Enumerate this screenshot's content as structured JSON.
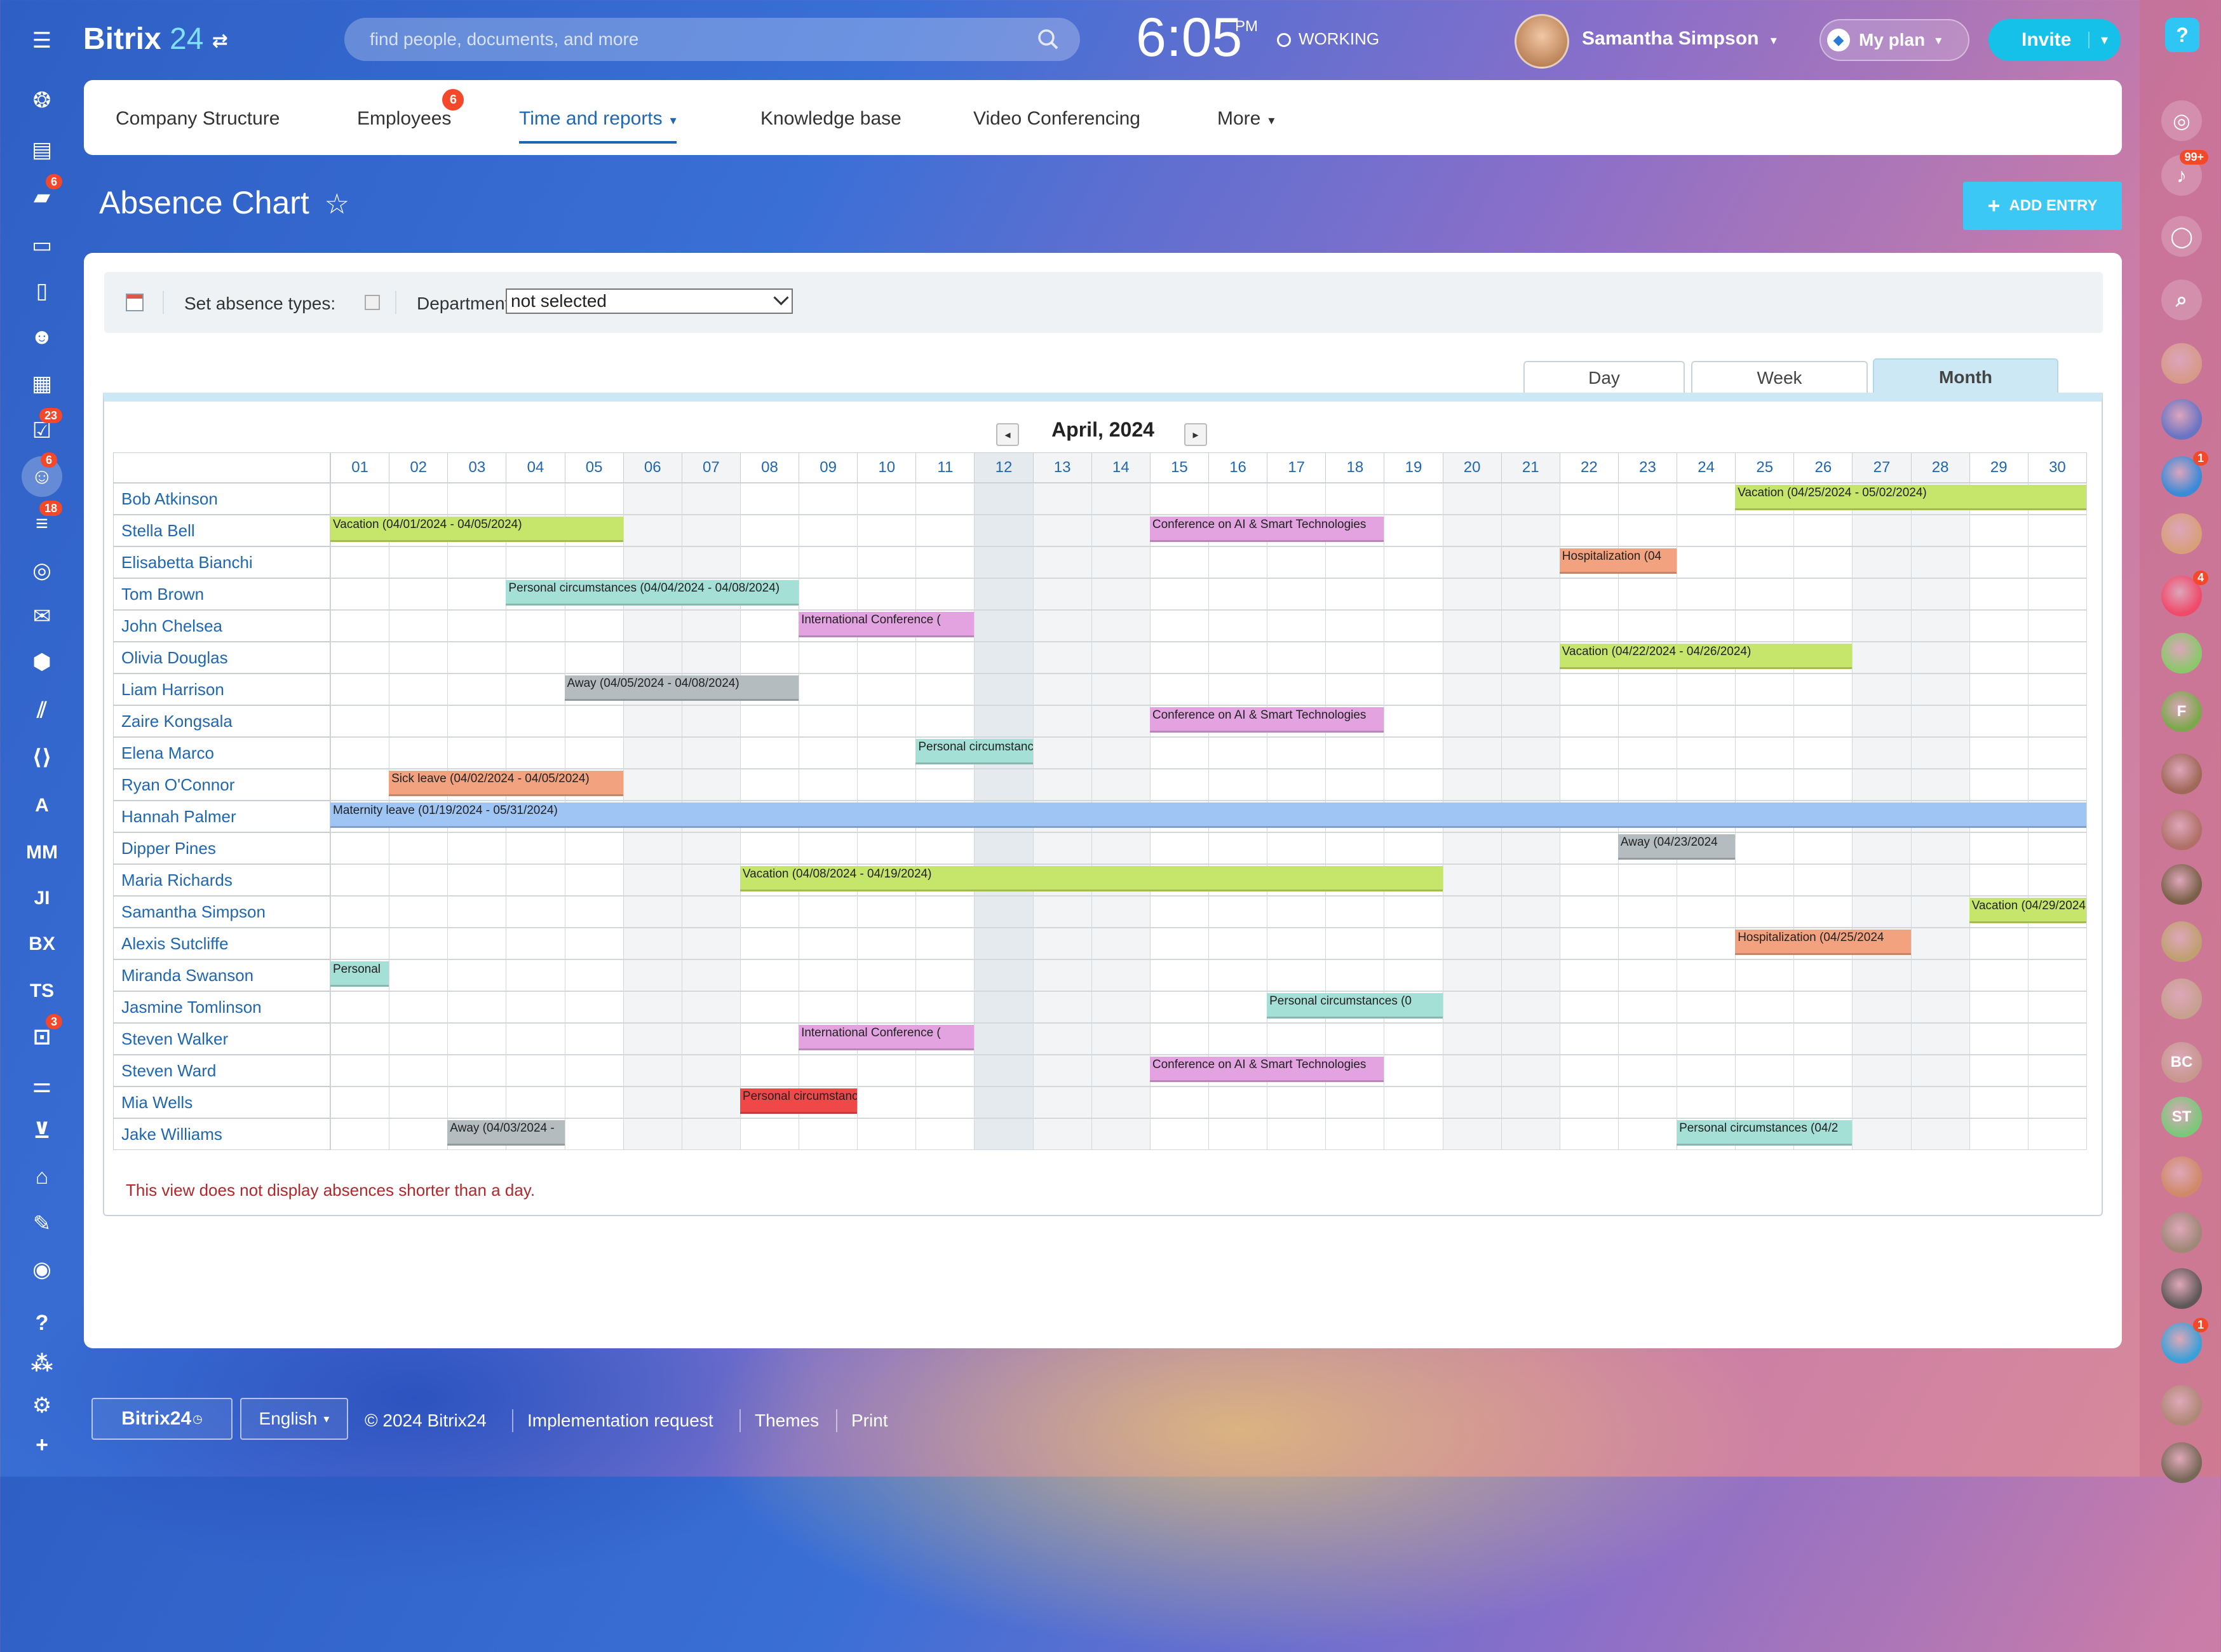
{
  "header": {
    "logo_main": "Bitrix",
    "logo_num": "24",
    "search_placeholder": "find people, documents, and more",
    "clock": "6:05",
    "ampm": "PM",
    "work_status": "WORKING",
    "username": "Samantha Simpson",
    "plan_label": "My plan",
    "invite_label": "Invite"
  },
  "nav": {
    "items": [
      {
        "label": "Company Structure"
      },
      {
        "label": "Employees",
        "badge": "6"
      },
      {
        "label": "Time and reports"
      },
      {
        "label": "Knowledge base"
      },
      {
        "label": "Video Conferencing"
      },
      {
        "label": "More"
      }
    ]
  },
  "page": {
    "title": "Absence Chart",
    "add_entry": "ADD ENTRY"
  },
  "filters": {
    "absence_types_label": "Set absence types:",
    "department_label": "Department:",
    "department_value": "not selected"
  },
  "views": {
    "day": "Day",
    "week": "Week",
    "month": "Month"
  },
  "calendar": {
    "month_label": "April, 2024",
    "days": [
      "01",
      "02",
      "03",
      "04",
      "05",
      "06",
      "07",
      "08",
      "09",
      "10",
      "11",
      "12",
      "13",
      "14",
      "15",
      "16",
      "17",
      "18",
      "19",
      "20",
      "21",
      "22",
      "23",
      "24",
      "25",
      "26",
      "27",
      "28",
      "29",
      "30"
    ],
    "weekend_days": [
      6,
      7,
      13,
      14,
      20,
      21,
      27,
      28
    ],
    "today": 12,
    "employees": [
      {
        "name": "Bob Atkinson",
        "absences": [
          {
            "label": "Vacation (04/25/2024 - 05/02/2024)",
            "start": 25,
            "end": 30,
            "color": "#c6e56b"
          }
        ]
      },
      {
        "name": "Stella Bell",
        "absences": [
          {
            "label": "Vacation (04/01/2024 - 04/05/2024)",
            "start": 1,
            "end": 5,
            "color": "#c6e56b"
          },
          {
            "label": "Conference on AI & Smart Technologies",
            "start": 15,
            "end": 18,
            "color": "#e3a3e0"
          }
        ]
      },
      {
        "name": "Elisabetta Bianchi",
        "absences": [
          {
            "label": "Hospitalization (04",
            "start": 22,
            "end": 23,
            "color": "#f3a27f"
          }
        ]
      },
      {
        "name": "Tom Brown",
        "absences": [
          {
            "label": "Personal circumstances (04/04/2024 - 04/08/2024)",
            "start": 4,
            "end": 8,
            "color": "#a5e0d6"
          }
        ]
      },
      {
        "name": "John Chelsea",
        "absences": [
          {
            "label": "International Conference (",
            "start": 9,
            "end": 11,
            "color": "#e3a3e0"
          }
        ]
      },
      {
        "name": "Olivia Douglas",
        "absences": [
          {
            "label": "Vacation (04/22/2024 - 04/26/2024)",
            "start": 22,
            "end": 26,
            "color": "#c6e56b"
          }
        ]
      },
      {
        "name": "Liam Harrison",
        "absences": [
          {
            "label": "Away (04/05/2024 - 04/08/2024)",
            "start": 5,
            "end": 8,
            "color": "#b4bcc0"
          }
        ]
      },
      {
        "name": "Zaire Kongsala",
        "absences": [
          {
            "label": "Conference on AI & Smart Technologies",
            "start": 15,
            "end": 18,
            "color": "#e3a3e0"
          }
        ]
      },
      {
        "name": "Elena Marco",
        "absences": [
          {
            "label": "Personal circumstances",
            "start": 11,
            "end": 12,
            "color": "#a5e0d6"
          }
        ]
      },
      {
        "name": "Ryan O'Connor",
        "absences": [
          {
            "label": "Sick leave (04/02/2024 - 04/05/2024)",
            "start": 2,
            "end": 5,
            "color": "#f3a27f"
          }
        ]
      },
      {
        "name": "Hannah Palmer",
        "absences": [
          {
            "label": "Maternity leave (01/19/2024 - 05/31/2024)",
            "start": 1,
            "end": 30,
            "color": "#9fc5f5"
          }
        ]
      },
      {
        "name": "Dipper Pines",
        "absences": [
          {
            "label": "Away (04/23/2024",
            "start": 23,
            "end": 24,
            "color": "#b4bcc0"
          }
        ]
      },
      {
        "name": "Maria Richards",
        "absences": [
          {
            "label": "Vacation (04/08/2024 - 04/19/2024)",
            "start": 8,
            "end": 19,
            "color": "#c6e56b"
          }
        ]
      },
      {
        "name": "Samantha Simpson",
        "absences": [
          {
            "label": "Vacation (04/29/2024",
            "start": 29,
            "end": 30,
            "color": "#c6e56b"
          }
        ]
      },
      {
        "name": "Alexis Sutcliffe",
        "absences": [
          {
            "label": "Hospitalization (04/25/2024",
            "start": 25,
            "end": 27,
            "color": "#f3a27f"
          }
        ]
      },
      {
        "name": "Miranda Swanson",
        "absences": [
          {
            "label": "Personal",
            "start": 1,
            "end": 1,
            "color": "#a5e0d6"
          }
        ]
      },
      {
        "name": "Jasmine Tomlinson",
        "absences": [
          {
            "label": "Personal circumstances (0",
            "start": 17,
            "end": 19,
            "color": "#a5e0d6"
          }
        ]
      },
      {
        "name": "Steven Walker",
        "absences": [
          {
            "label": "International Conference (",
            "start": 9,
            "end": 11,
            "color": "#e3a3e0"
          }
        ]
      },
      {
        "name": "Steven Ward",
        "absences": [
          {
            "label": "Conference on AI & Smart Technologies",
            "start": 15,
            "end": 18,
            "color": "#e3a3e0"
          }
        ]
      },
      {
        "name": "Mia Wells",
        "absences": [
          {
            "label": "Personal circumstances",
            "start": 8,
            "end": 9,
            "color": "#f04848"
          }
        ]
      },
      {
        "name": "Jake Williams",
        "absences": [
          {
            "label": "Away (04/03/2024 -",
            "start": 3,
            "end": 4,
            "color": "#b4bcc0"
          },
          {
            "label": "Personal circumstances (04/2",
            "start": 24,
            "end": 26,
            "color": "#a5e0d6"
          }
        ]
      }
    ],
    "note": "This view does not display absences shorter than a day."
  },
  "left_sidebar": {
    "items": [
      {
        "icon": "menu-icon"
      },
      {
        "icon": "feed-icon"
      },
      {
        "icon": "tasks-icon"
      },
      {
        "icon": "chat-icon",
        "badge": "6"
      },
      {
        "icon": "drive-icon"
      },
      {
        "icon": "docs-icon"
      },
      {
        "icon": "groups-icon"
      },
      {
        "icon": "calendar-icon"
      },
      {
        "icon": "checklist-icon",
        "badge": "23"
      },
      {
        "icon": "employees-icon",
        "badge": "6"
      },
      {
        "icon": "crm-icon",
        "badge": "18"
      },
      {
        "icon": "target-icon"
      },
      {
        "icon": "mail-icon"
      },
      {
        "icon": "box-icon"
      },
      {
        "icon": "marketing-icon"
      },
      {
        "icon": "code-icon"
      },
      {
        "text": "A"
      },
      {
        "text": "MM"
      },
      {
        "text": "JI"
      },
      {
        "text": "BX"
      },
      {
        "text": "TS"
      },
      {
        "icon": "bot-icon",
        "badge": "3"
      },
      {
        "icon": "settings-sliders-icon"
      },
      {
        "icon": "cart-icon"
      },
      {
        "icon": "bank-icon"
      },
      {
        "icon": "sign-icon"
      },
      {
        "icon": "more-circle-icon"
      },
      {
        "icon": "help-icon"
      },
      {
        "icon": "structure-icon"
      },
      {
        "icon": "gear-icon"
      },
      {
        "icon": "plus-icon"
      }
    ]
  },
  "right_sidebar": {
    "items": [
      {
        "icon": "help-icon"
      },
      {
        "icon": "copilot-icon"
      },
      {
        "icon": "bell-icon",
        "badge": "99+"
      },
      {
        "icon": "messages-icon"
      },
      {
        "icon": "search-icon"
      },
      {
        "color": "#d79a8a"
      },
      {
        "color": "#6a74c4"
      },
      {
        "color": "#3a8ad8",
        "badge": "1"
      },
      {
        "color": "#d8a07a"
      },
      {
        "color": "#f04a6a",
        "badge": "4"
      },
      {
        "color": "#8ac86a"
      },
      {
        "text": "F",
        "color": "#7aa84a"
      },
      {
        "color": "#a06858"
      },
      {
        "color": "#b07068"
      },
      {
        "color": "#7a6048"
      },
      {
        "color": "#c0a070"
      },
      {
        "color": "#c8a090"
      },
      {
        "text": "BC",
        "color": "#c89890"
      },
      {
        "text": "ST",
        "color": "#7ac87a"
      },
      {
        "color": "#d08a6a"
      },
      {
        "color": "#a08878"
      },
      {
        "color": "#605858"
      },
      {
        "color": "#3aa0d8",
        "badge": "1"
      },
      {
        "color": "#b08878"
      },
      {
        "color": "#786858"
      }
    ]
  },
  "footer": {
    "logo": "Bitrix24",
    "lang": "English",
    "copyright": "© 2024 Bitrix24",
    "impl": "Implementation request",
    "themes": "Themes",
    "print": "Print"
  }
}
